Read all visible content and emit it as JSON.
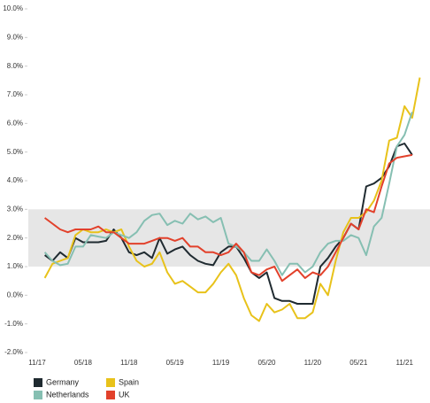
{
  "chart_data": {
    "type": "line",
    "categories": [
      "11/17",
      null,
      null,
      null,
      null,
      null,
      "05/18",
      null,
      null,
      null,
      null,
      null,
      "11/18",
      null,
      null,
      null,
      null,
      null,
      "05/19",
      null,
      null,
      null,
      null,
      null,
      "11/19",
      null,
      null,
      null,
      null,
      null,
      "05/20",
      null,
      null,
      null,
      null,
      null,
      "11/20",
      null,
      null,
      null,
      null,
      null,
      "05/21",
      null,
      null,
      null,
      null,
      null,
      "11/21",
      null,
      null
    ],
    "series": [
      {
        "name": "Germany",
        "color": "#1f2a30",
        "values": [
          null,
          1.4,
          1.2,
          1.5,
          1.3,
          2.0,
          1.85,
          1.85,
          1.85,
          1.9,
          2.3,
          2.0,
          1.5,
          1.4,
          1.5,
          1.3,
          2.0,
          1.45,
          1.6,
          1.7,
          1.4,
          1.2,
          1.1,
          1.05,
          1.5,
          1.7,
          1.7,
          1.3,
          0.8,
          0.6,
          0.8,
          -0.1,
          -0.2,
          -0.2,
          -0.3,
          -0.3,
          -0.3,
          1.0,
          1.3,
          1.7,
          2.0,
          2.5,
          2.3,
          3.8,
          3.9,
          4.1,
          4.5,
          5.2,
          5.3,
          4.9,
          null
        ]
      },
      {
        "name": "Spain",
        "color": "#e8c21a",
        "values": [
          null,
          0.6,
          1.1,
          1.2,
          1.3,
          2.1,
          2.3,
          2.2,
          2.2,
          2.3,
          2.2,
          2.3,
          1.7,
          1.2,
          1.0,
          1.1,
          1.5,
          0.8,
          0.4,
          0.5,
          0.3,
          0.1,
          0.1,
          0.4,
          0.8,
          1.1,
          0.7,
          -0.1,
          -0.7,
          -0.9,
          -0.3,
          -0.6,
          -0.5,
          -0.3,
          -0.8,
          -0.8,
          -0.6,
          0.4,
          0.0,
          1.2,
          2.2,
          2.7,
          2.7,
          2.9,
          3.3,
          4.0,
          5.4,
          5.5,
          6.6,
          6.2,
          7.6
        ]
      },
      {
        "name": "Netherlands",
        "color": "#86bfb2",
        "values": [
          null,
          1.5,
          1.2,
          1.05,
          1.1,
          1.7,
          1.7,
          2.1,
          2.05,
          2.0,
          2.2,
          2.1,
          2.0,
          2.2,
          2.6,
          2.8,
          2.85,
          2.45,
          2.6,
          2.5,
          2.85,
          2.65,
          2.75,
          2.55,
          2.7,
          1.8,
          1.7,
          1.5,
          1.2,
          1.2,
          1.6,
          1.2,
          0.7,
          1.1,
          1.1,
          0.8,
          1.0,
          1.5,
          1.8,
          1.9,
          1.9,
          2.1,
          2.0,
          1.4,
          2.4,
          2.7,
          3.9,
          5.2,
          5.6,
          6.4,
          null
        ]
      },
      {
        "name": "UK",
        "color": "#e2412b",
        "values": [
          null,
          2.7,
          2.5,
          2.3,
          2.2,
          2.3,
          2.3,
          2.3,
          2.4,
          2.2,
          2.2,
          2.0,
          1.8,
          1.8,
          1.8,
          1.9,
          2.0,
          2.0,
          1.9,
          2.0,
          1.7,
          1.7,
          1.5,
          1.5,
          1.4,
          1.5,
          1.8,
          1.5,
          0.8,
          0.7,
          0.9,
          1.0,
          0.5,
          0.7,
          0.9,
          0.6,
          0.8,
          0.7,
          1.0,
          1.5,
          2.0,
          2.5,
          2.3,
          3.0,
          2.9,
          3.8,
          4.6,
          4.8,
          4.85,
          4.9,
          null
        ]
      }
    ],
    "ylim": [
      -2,
      10
    ],
    "yticks": [
      {
        "value": -2,
        "label": "-2.0%"
      },
      {
        "value": -1,
        "label": "-1.0%"
      },
      {
        "value": 0,
        "label": "0.0%"
      },
      {
        "value": 1,
        "label": "1.0%"
      },
      {
        "value": 2,
        "label": "2.0%"
      },
      {
        "value": 3,
        "label": "3.0%"
      },
      {
        "value": 4,
        "label": "4.0%"
      },
      {
        "value": 5,
        "label": "5.0%"
      },
      {
        "value": 6,
        "label": "6.0%"
      },
      {
        "value": 7,
        "label": "7.0%"
      },
      {
        "value": 8,
        "label": "8.0%"
      },
      {
        "value": 9,
        "label": "9.0%"
      },
      {
        "value": 10,
        "label": "10.0%"
      }
    ],
    "shaded_range": [
      1,
      3
    ],
    "band_color": "#e6e6e6",
    "grid": false
  }
}
